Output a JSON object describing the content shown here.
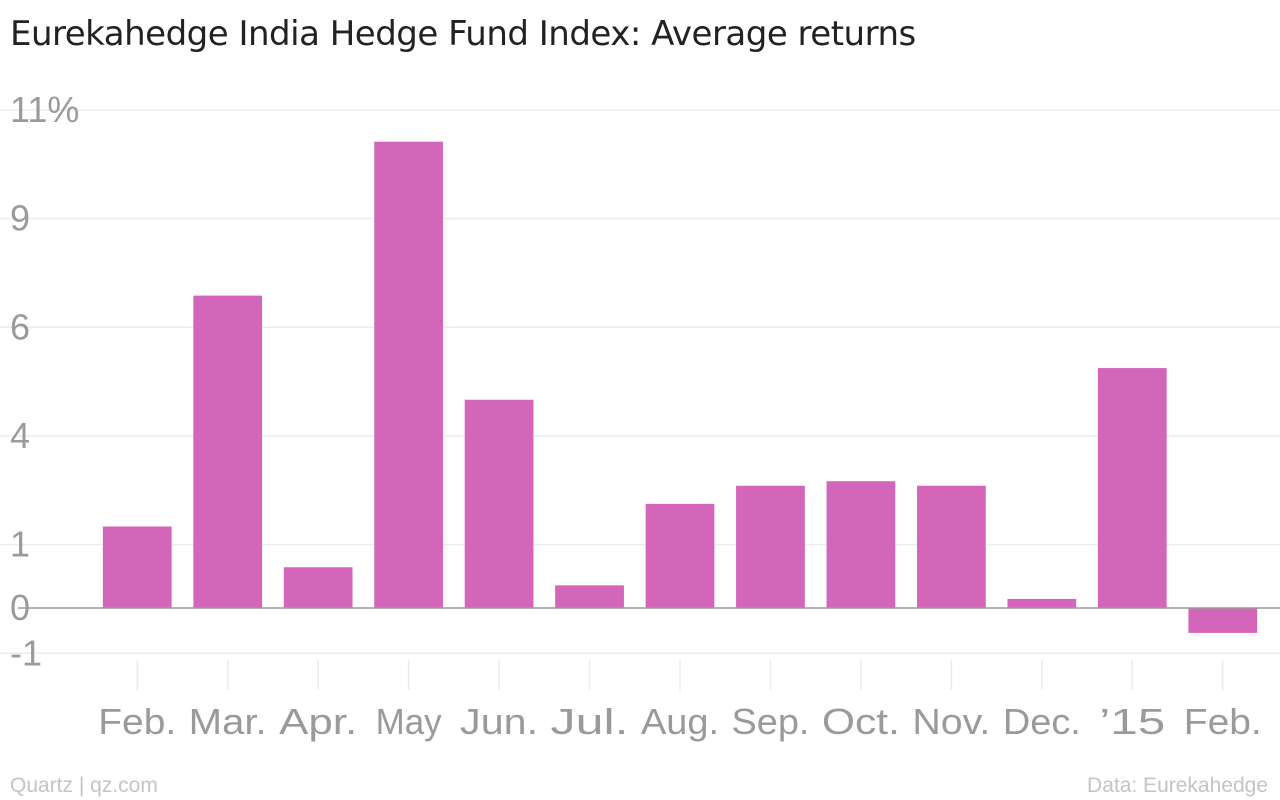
{
  "title": "Eurekahedge India Hedge Fund Index: Average returns",
  "footer": {
    "credit": "Quartz | qz.com",
    "source": "Data: Eurekahedge"
  },
  "colors": {
    "bar": "#d366b9",
    "grid": "#ececec",
    "zero_line": "#9a9a9a",
    "tick_text": "#9a9a9a"
  },
  "chart_data": {
    "type": "bar",
    "categories": [
      "Feb.",
      "Mar.",
      "Apr.",
      "May",
      "Jun.",
      "Jul.",
      "Aug.",
      "Sep.",
      "Oct.",
      "Nov.",
      "Dec.",
      "’15",
      "Feb."
    ],
    "values": [
      1.8,
      6.9,
      0.9,
      10.3,
      4.6,
      0.5,
      2.3,
      2.7,
      2.8,
      2.7,
      0.2,
      5.3,
      -0.55
    ],
    "ytick_labels": [
      "11%",
      "9",
      "6",
      "4",
      "1",
      "0",
      "-1"
    ],
    "ytick_values": [
      11,
      8.6,
      6.2,
      3.8,
      1.4,
      0,
      -1
    ],
    "ylim": [
      -1,
      11
    ],
    "grid": true,
    "title": "Eurekahedge India Hedge Fund Index: Average returns",
    "xlabel": "",
    "ylabel": ""
  }
}
